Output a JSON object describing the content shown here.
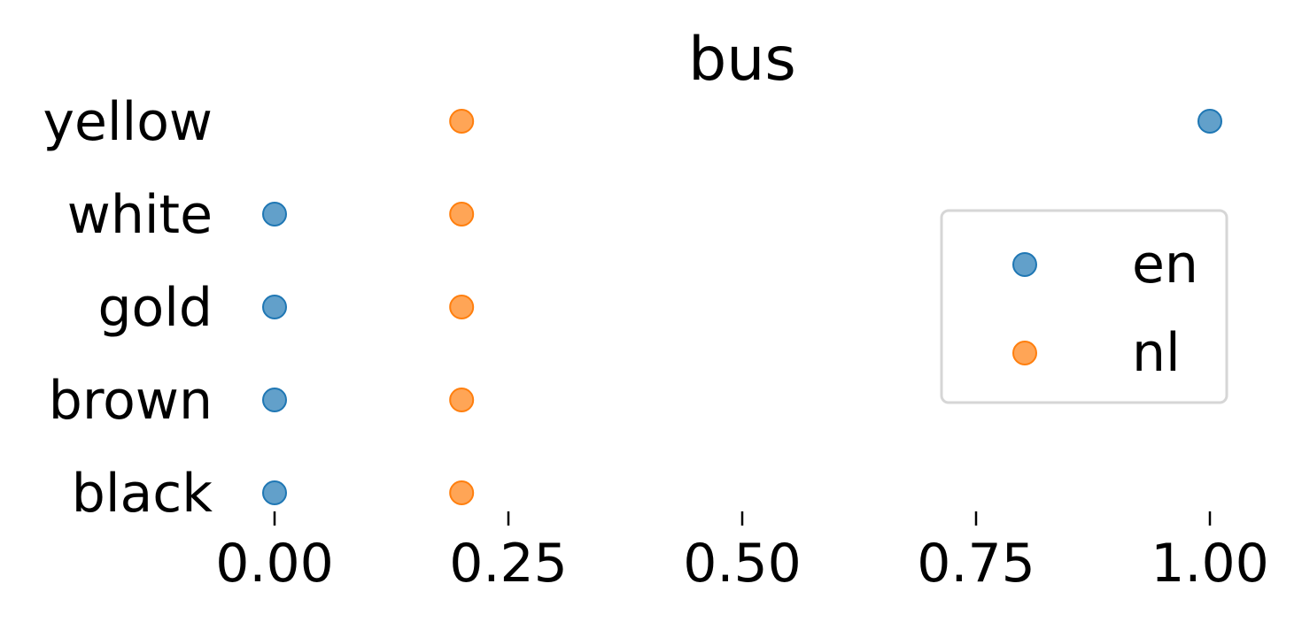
{
  "chart_data": {
    "type": "scatter",
    "title": "bus",
    "xlabel": "",
    "ylabel": "",
    "xlim": [
      -0.0625,
      1.0625
    ],
    "xticks": [
      0.0,
      0.25,
      0.5,
      0.75,
      1.0
    ],
    "xtick_labels": [
      "0.00",
      "0.25",
      "0.50",
      "0.75",
      "1.00"
    ],
    "categories": [
      "black",
      "brown",
      "gold",
      "white",
      "yellow"
    ],
    "series": [
      {
        "name": "en",
        "color": "#1f77b4",
        "points": [
          {
            "category": "black",
            "x": 0.0
          },
          {
            "category": "brown",
            "x": 0.0
          },
          {
            "category": "gold",
            "x": 0.0
          },
          {
            "category": "white",
            "x": 0.0
          },
          {
            "category": "yellow",
            "x": 1.0
          }
        ]
      },
      {
        "name": "nl",
        "color": "#ff7f0e",
        "points": [
          {
            "category": "black",
            "x": 0.2
          },
          {
            "category": "brown",
            "x": 0.2
          },
          {
            "category": "gold",
            "x": 0.2
          },
          {
            "category": "white",
            "x": 0.2
          },
          {
            "category": "yellow",
            "x": 0.2
          }
        ]
      }
    ],
    "legend_position": "right",
    "grid": false
  }
}
